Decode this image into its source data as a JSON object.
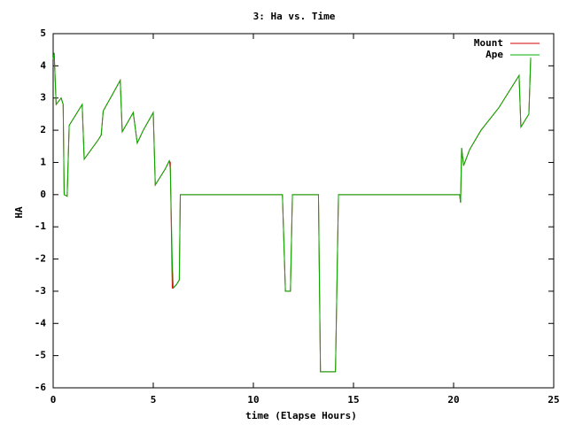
{
  "chart_data": {
    "type": "line",
    "title": "3: Ha vs. Time",
    "x_label": "time (Elapse Hours)",
    "y_label": "HA",
    "x": [
      0,
      0.05,
      0.15,
      0.4,
      0.5,
      0.55,
      0.7,
      0.8,
      1.45,
      1.55,
      2.25,
      2.4,
      2.5,
      2.95,
      3.35,
      3.45,
      4.0,
      4.2,
      4.5,
      5.0,
      5.1,
      5.6,
      5.8,
      5.85,
      5.95,
      6.0,
      6.15,
      6.3,
      6.35,
      11.45,
      11.6,
      11.85,
      11.95,
      13.25,
      13.35,
      14.1,
      14.25,
      20.3,
      20.35,
      20.4,
      20.5,
      20.8,
      21.37,
      22.26,
      23.27,
      23.36,
      23.76,
      23.85
    ],
    "series": [
      {
        "name": "Mount",
        "color": "#d00000",
        "values": [
          4.2,
          4.4,
          2.8,
          3.0,
          2.8,
          0.0,
          -0.05,
          2.15,
          2.8,
          1.1,
          1.7,
          1.85,
          2.6,
          3.1,
          3.55,
          1.95,
          2.55,
          1.6,
          2.0,
          2.55,
          0.3,
          0.8,
          1.05,
          1.0,
          -2.9,
          -2.9,
          -2.8,
          -2.65,
          0,
          0,
          -3.0,
          -3.0,
          0,
          0,
          -5.5,
          -5.5,
          0,
          0,
          -0.25,
          1.45,
          0.9,
          1.4,
          2.0,
          2.7,
          3.7,
          2.1,
          2.5,
          4.25
        ]
      },
      {
        "name": "Ape",
        "color": "#00b000",
        "values": [
          4.2,
          4.4,
          2.8,
          3.0,
          2.8,
          0.0,
          -0.05,
          2.15,
          2.8,
          1.1,
          1.7,
          1.85,
          2.6,
          3.1,
          3.55,
          1.95,
          2.55,
          1.6,
          2.0,
          2.55,
          0.3,
          0.8,
          1.05,
          0.8,
          -2.1,
          -2.9,
          -2.8,
          -2.65,
          0,
          0,
          -3.0,
          -3.0,
          0,
          0,
          -5.5,
          -5.5,
          0,
          0,
          -0.25,
          1.45,
          0.9,
          1.4,
          2.0,
          2.7,
          3.7,
          2.1,
          2.5,
          4.25
        ]
      }
    ],
    "xlim": [
      0,
      25
    ],
    "xticks": [
      0,
      5,
      10,
      15,
      20,
      25
    ],
    "ylim": [
      -6,
      5
    ],
    "yticks": [
      -6,
      -5,
      -4,
      -3,
      -2,
      -1,
      0,
      1,
      2,
      3,
      4,
      5
    ],
    "grid": false,
    "legend": "top-right"
  }
}
